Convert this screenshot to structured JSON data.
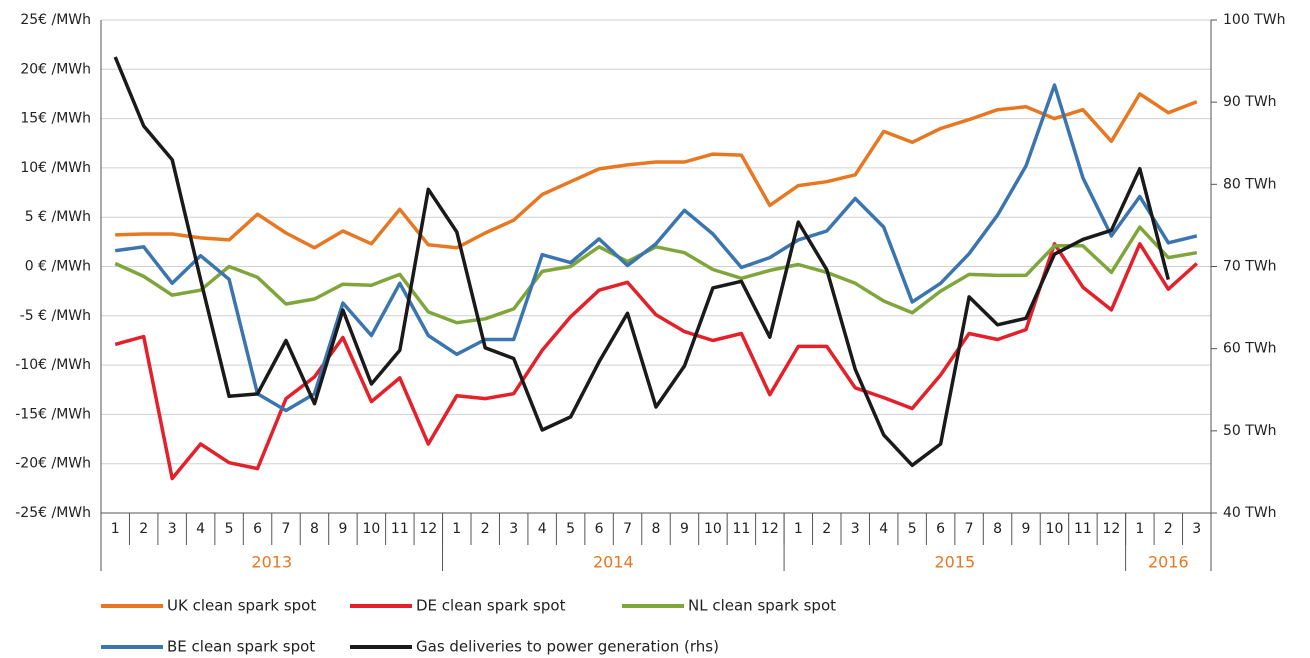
{
  "chart_data": {
    "type": "line",
    "categories": [
      "1",
      "2",
      "3",
      "4",
      "5",
      "6",
      "7",
      "8",
      "9",
      "10",
      "11",
      "12",
      "1",
      "2",
      "3",
      "4",
      "5",
      "6",
      "7",
      "8",
      "9",
      "10",
      "11",
      "12",
      "1",
      "2",
      "3",
      "4",
      "5",
      "6",
      "7",
      "8",
      "9",
      "10",
      "11",
      "12",
      "1",
      "2",
      "3"
    ],
    "years": [
      "2013",
      "2014",
      "2015",
      "2016"
    ],
    "year_color": "#e87722",
    "ylim": [
      -25,
      25
    ],
    "yticks": [
      {
        "value": -25,
        "label": "-25€ /MWh"
      },
      {
        "value": -20,
        "label": "-20€ /MWh"
      },
      {
        "value": -15,
        "label": "-15€ /MWh"
      },
      {
        "value": -10,
        "label": "-10€ /MWh"
      },
      {
        "value": -5,
        "label": "-5 € /MWh"
      },
      {
        "value": 0,
        "label": "0 € /MWh"
      },
      {
        "value": 5,
        "label": "5 € /MWh"
      },
      {
        "value": 10,
        "label": "10€ /MWh"
      },
      {
        "value": 15,
        "label": "15€ /MWh"
      },
      {
        "value": 20,
        "label": "20€ /MWh"
      },
      {
        "value": 25,
        "label": "25€ /MWh"
      }
    ],
    "y2lim": [
      40,
      100
    ],
    "y2ticks": [
      {
        "value": 40,
        "label": "40 TWh"
      },
      {
        "value": 50,
        "label": "50 TWh"
      },
      {
        "value": 60,
        "label": "60 TWh"
      },
      {
        "value": 70,
        "label": "70 TWh"
      },
      {
        "value": 80,
        "label": "80 TWh"
      },
      {
        "value": 90,
        "label": "90 TWh"
      },
      {
        "value": 100,
        "label": "100 TWh"
      }
    ],
    "grid": true,
    "series": [
      {
        "name": "UK clean spark spot",
        "color": "#e87722",
        "values": [
          3.2,
          3.3,
          3.3,
          2.9,
          2.7,
          5.3,
          3.4,
          1.9,
          3.6,
          2.3,
          5.8,
          2.2,
          1.9,
          3.4,
          4.7,
          7.3,
          8.6,
          9.9,
          10.3,
          10.6,
          10.6,
          11.4,
          11.3,
          6.2,
          8.2,
          8.6,
          9.3,
          13.7,
          12.6,
          14.0,
          14.9,
          15.9,
          16.2,
          15.0,
          15.9,
          12.7,
          17.5,
          15.6,
          16.7
        ]
      },
      {
        "name": "DE clean spark spot",
        "color": "#e4202a",
        "values": [
          -7.9,
          -7.1,
          -21.5,
          -18.0,
          -19.9,
          -20.5,
          -13.4,
          -11.2,
          -7.2,
          -13.7,
          -11.3,
          -18.0,
          -13.1,
          -13.4,
          -12.9,
          -8.5,
          -5.1,
          -2.4,
          -1.6,
          -4.9,
          -6.6,
          -7.5,
          -6.8,
          -13.0,
          -8.1,
          -8.1,
          -12.3,
          -13.3,
          -14.4,
          -11.0,
          -6.8,
          -7.4,
          -6.4,
          2.3,
          -2.1,
          -4.4,
          2.3,
          -2.3,
          0.3
        ]
      },
      {
        "name": "NL clean spark spot",
        "color": "#7ea63b",
        "values": [
          0.3,
          -1.0,
          -2.9,
          -2.4,
          0,
          -1.1,
          -3.8,
          -3.3,
          -1.8,
          -1.9,
          -0.8,
          -4.6,
          -5.7,
          -5.3,
          -4.3,
          -0.5,
          0,
          2.0,
          0.5,
          2.0,
          1.4,
          -0.3,
          -1.2,
          -0.4,
          0.2,
          -0.6,
          -1.7,
          -3.5,
          -4.7,
          -2.5,
          -0.8,
          -0.9,
          -0.9,
          2.1,
          2.1,
          -0.6,
          4.0,
          0.9,
          1.4
        ]
      },
      {
        "name": "BE clean spark spot",
        "color": "#3a75b0",
        "values": [
          1.6,
          2.0,
          -1.7,
          1.1,
          -1.3,
          -12.9,
          -14.6,
          -12.9,
          -3.7,
          -7.0,
          -1.7,
          -7.0,
          -8.9,
          -7.4,
          -7.4,
          1.2,
          0.4,
          2.8,
          0.1,
          2.3,
          5.7,
          3.3,
          -0.1,
          0.9,
          2.7,
          3.6,
          6.9,
          4.0,
          -3.6,
          -1.7,
          1.3,
          5.2,
          10.2,
          18.4,
          9.0,
          3.1,
          7.1,
          2.4,
          3.1
        ]
      },
      {
        "name": "Gas deliveries to power generation (rhs)",
        "color": "#1a1a1a",
        "axis": "y2",
        "values": [
          95.5,
          87.1,
          83.0,
          68.4,
          54.2,
          54.5,
          61.0,
          53.3,
          64.7,
          55.7,
          59.8,
          79.4,
          74.2,
          60.1,
          58.8,
          50.1,
          51.7,
          58.4,
          64.3,
          52.9,
          57.9,
          67.4,
          68.2,
          61.4,
          75.4,
          69.6,
          57.5,
          49.5,
          45.8,
          48.4,
          66.3,
          62.9,
          63.7,
          71.5,
          73.3,
          74.4,
          81.9,
          68.4,
          null
        ]
      }
    ]
  }
}
